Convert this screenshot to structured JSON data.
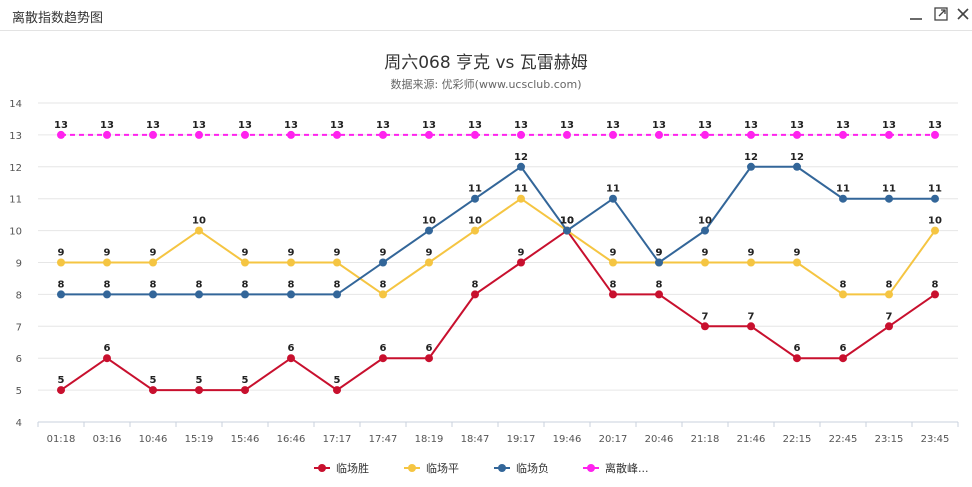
{
  "window": {
    "title": "离散指数趋势图",
    "minimize_icon": "minimize-icon",
    "maximize_icon": "maximize-icon",
    "close_icon": "close-icon"
  },
  "chart_data": {
    "type": "line",
    "title": "周六068 亨克 vs 瓦雷赫姆",
    "subtitle": "数据来源: 优彩师(www.ucsclub.com)",
    "xlabel": "",
    "ylabel": "",
    "ylim": [
      4,
      14
    ],
    "yticks": [
      4,
      5,
      6,
      7,
      8,
      9,
      10,
      11,
      12,
      13,
      14
    ],
    "grid": true,
    "legend_position": "bottom",
    "categories": [
      "01:18",
      "03:16",
      "10:46",
      "15:19",
      "15:46",
      "16:46",
      "17:17",
      "17:47",
      "18:19",
      "18:47",
      "19:17",
      "19:46",
      "20:17",
      "20:46",
      "21:18",
      "21:46",
      "22:15",
      "22:45",
      "23:15",
      "23:45"
    ],
    "series": [
      {
        "name": "临场胜",
        "color": "#c8102e",
        "dashed": false,
        "values": [
          5,
          6,
          5,
          5,
          5,
          6,
          5,
          6,
          6,
          8,
          9,
          10,
          8,
          8,
          7,
          7,
          6,
          6,
          7,
          8
        ]
      },
      {
        "name": "临场平",
        "color": "#f5c542",
        "dashed": false,
        "values": [
          9,
          9,
          9,
          10,
          9,
          9,
          9,
          8,
          9,
          10,
          11,
          10,
          9,
          9,
          9,
          9,
          9,
          8,
          8,
          10
        ]
      },
      {
        "name": "临场负",
        "color": "#336699",
        "dashed": false,
        "values": [
          8,
          8,
          8,
          8,
          8,
          8,
          8,
          9,
          10,
          11,
          12,
          10,
          11,
          9,
          10,
          12,
          12,
          11,
          11,
          11
        ]
      },
      {
        "name": "离散峰...",
        "color": "#ff22ee",
        "dashed": true,
        "values": [
          13,
          13,
          13,
          13,
          13,
          13,
          13,
          13,
          13,
          13,
          13,
          13,
          13,
          13,
          13,
          13,
          13,
          13,
          13,
          13
        ]
      }
    ]
  }
}
